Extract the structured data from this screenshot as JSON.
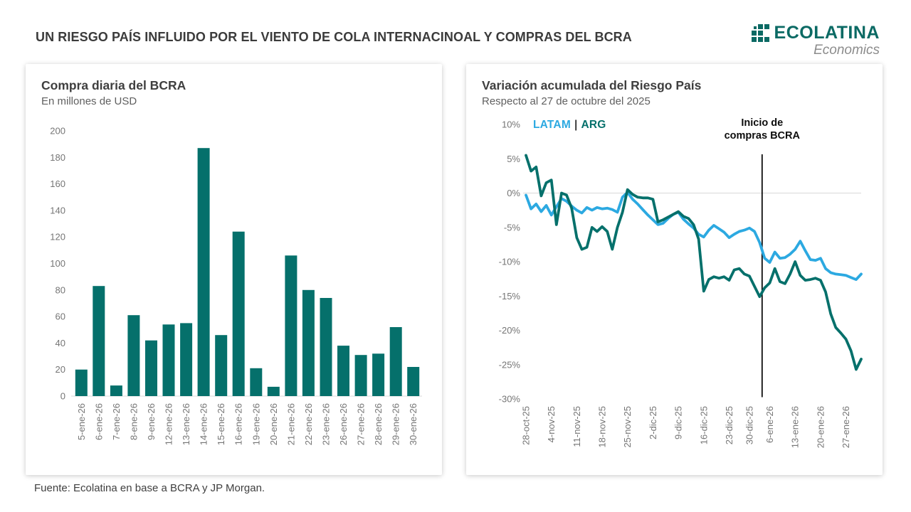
{
  "header": {
    "title": "UN RIESGO PAÍS INFLUIDO POR EL VIENTO DE COLA INTERNACINOAL Y COMPRAS DEL BCRA",
    "logo": {
      "name": "ECOLATINA",
      "tagline": "Economics",
      "brand_color": "#0B6A64"
    }
  },
  "footer": {
    "source": "Fuente: Ecolatina en base a BCRA y JP Morgan."
  },
  "colors": {
    "teal": "#05706B",
    "blue": "#2CA9E1",
    "event_line": "#000000",
    "gridline": "#D9D9D9",
    "axis_text": "#757575"
  },
  "chart_data": [
    {
      "type": "bar",
      "title": "Compra diaria del BCRA",
      "subtitle": "En millones de USD",
      "bar_color": "#05706B",
      "grid": false,
      "ylim": [
        0,
        200
      ],
      "ytick_step": 20,
      "categories": [
        "5-ene-26",
        "6-ene-26",
        "7-ene-26",
        "8-ene-26",
        "9-ene-26",
        "12-ene-26",
        "13-ene-26",
        "14-ene-26",
        "15-ene-26",
        "16-ene-26",
        "19-ene-26",
        "20-ene-26",
        "21-ene-26",
        "22-ene-26",
        "23-ene-26",
        "26-ene-26",
        "27-ene-26",
        "28-ene-26",
        "29-ene-26",
        "30-ene-26"
      ],
      "values": [
        20,
        83,
        8,
        61,
        42,
        54,
        55,
        187,
        46,
        124,
        21,
        7,
        106,
        80,
        74,
        38,
        31,
        32,
        52,
        22
      ]
    },
    {
      "type": "line",
      "title": "Variación acumulada del Riesgo País",
      "subtitle": "Respecto al 27 de octubre del 2025",
      "ylim": [
        -30,
        10
      ],
      "ytick_step": 5,
      "ytick_suffix": "%",
      "grid": "zero-line-only",
      "legend_position": "top-left",
      "x_description": "daily (business days) from 28-oct-25 to 30-ene-26",
      "xticks": [
        {
          "i": 0,
          "label": "28-oct-25"
        },
        {
          "i": 5,
          "label": "4-nov-25"
        },
        {
          "i": 10,
          "label": "11-nov-25"
        },
        {
          "i": 15,
          "label": "18-nov-25"
        },
        {
          "i": 20,
          "label": "25-nov-25"
        },
        {
          "i": 25,
          "label": "2-dic-25"
        },
        {
          "i": 30,
          "label": "9-dic-25"
        },
        {
          "i": 35,
          "label": "16-dic-25"
        },
        {
          "i": 40,
          "label": "23-dic-25"
        },
        {
          "i": 44,
          "label": "30-dic-25"
        },
        {
          "i": 48,
          "label": "6-ene-26"
        },
        {
          "i": 53,
          "label": "13-ene-26"
        },
        {
          "i": 58,
          "label": "20-ene-26"
        },
        {
          "i": 63,
          "label": "27-ene-26"
        }
      ],
      "series": [
        {
          "name": "LATAM",
          "color": "#2CA9E1",
          "values": [
            -0.3,
            -2.3,
            -1.6,
            -2.7,
            -1.8,
            -3.2,
            -2.0,
            -0.8,
            -1.2,
            -1.9,
            -2.5,
            -2.9,
            -2.1,
            -2.5,
            -2.1,
            -2.3,
            -2.2,
            -2.4,
            -2.8,
            -0.6,
            0.1,
            -0.9,
            -1.6,
            -2.4,
            -3.2,
            -3.9,
            -4.6,
            -4.4,
            -3.7,
            -3.1,
            -2.8,
            -3.8,
            -4.5,
            -5.1,
            -6.0,
            -6.4,
            -5.4,
            -4.7,
            -5.2,
            -5.7,
            -6.5,
            -6.0,
            -5.6,
            -5.4,
            -5.1,
            -5.6,
            -7.2,
            -9.5,
            -10.1,
            -8.6,
            -9.5,
            -9.4,
            -8.9,
            -8.2,
            -7.0,
            -8.4,
            -9.7,
            -9.8,
            -9.5,
            -11.0,
            -11.6,
            -11.8,
            -11.9,
            -12.0,
            -12.3,
            -12.6,
            -11.8
          ]
        },
        {
          "name": "ARG",
          "color": "#05706B",
          "values": [
            5.5,
            3.2,
            3.8,
            -0.4,
            1.5,
            1.9,
            -4.6,
            0.0,
            -0.3,
            -2.2,
            -6.5,
            -8.2,
            -7.9,
            -5.0,
            -5.6,
            -4.9,
            -5.6,
            -8.2,
            -5.0,
            -2.8,
            0.5,
            -0.2,
            -0.6,
            -0.7,
            -0.7,
            -0.9,
            -4.2,
            -3.9,
            -3.5,
            -3.1,
            -2.7,
            -3.4,
            -3.7,
            -4.6,
            -6.7,
            -14.3,
            -12.6,
            -12.2,
            -12.4,
            -12.2,
            -12.7,
            -11.2,
            -11.0,
            -11.8,
            -12.1,
            -13.6,
            -15.1,
            -13.8,
            -13.1,
            -11.0,
            -12.9,
            -13.2,
            -11.8,
            -10.0,
            -12.0,
            -12.7,
            -12.6,
            -12.4,
            -12.7,
            -14.4,
            -17.6,
            -19.6,
            -20.4,
            -21.3,
            -23.0,
            -25.7,
            -24.2
          ]
        }
      ],
      "legend_separator": "|",
      "annotation": {
        "line1": "Inicio de",
        "line2": "compras BCRA",
        "x_index": 46.5
      }
    }
  ]
}
